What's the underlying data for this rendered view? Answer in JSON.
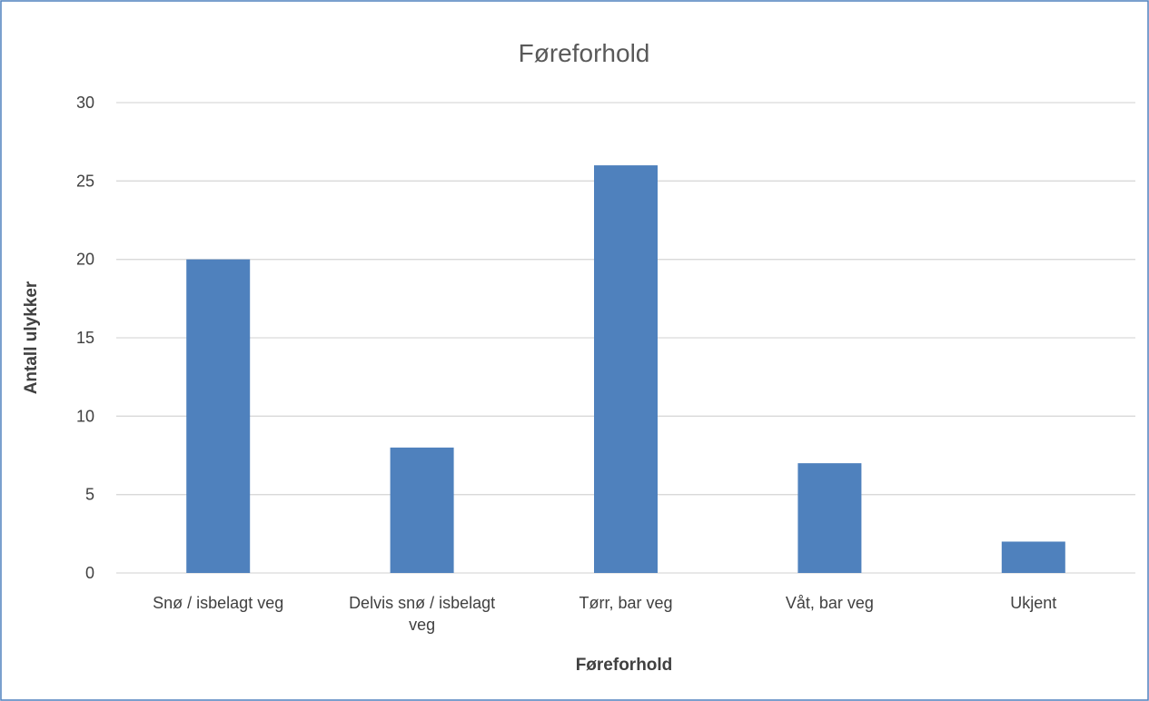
{
  "chart_data": {
    "type": "bar",
    "title": "Føreforhold",
    "xlabel": "Føreforhold",
    "ylabel": "Antall ulykker",
    "categories": [
      [
        "Snø / isbelagt veg"
      ],
      [
        "Delvis snø / isbelagt",
        "veg"
      ],
      [
        "Tørr, bar veg"
      ],
      [
        "Våt, bar veg"
      ],
      [
        "Ukjent"
      ]
    ],
    "values": [
      20,
      8,
      26,
      7,
      2
    ],
    "ylim": [
      0,
      30
    ],
    "yticks": [
      "0",
      "5",
      "10",
      "15",
      "20",
      "25",
      "30"
    ],
    "grid": true,
    "legend": "none",
    "colors": {
      "bar": "#4F81BD",
      "grid": "#D9D9D9",
      "axis": "#D9D9D9",
      "border": "#4F81BD"
    }
  }
}
